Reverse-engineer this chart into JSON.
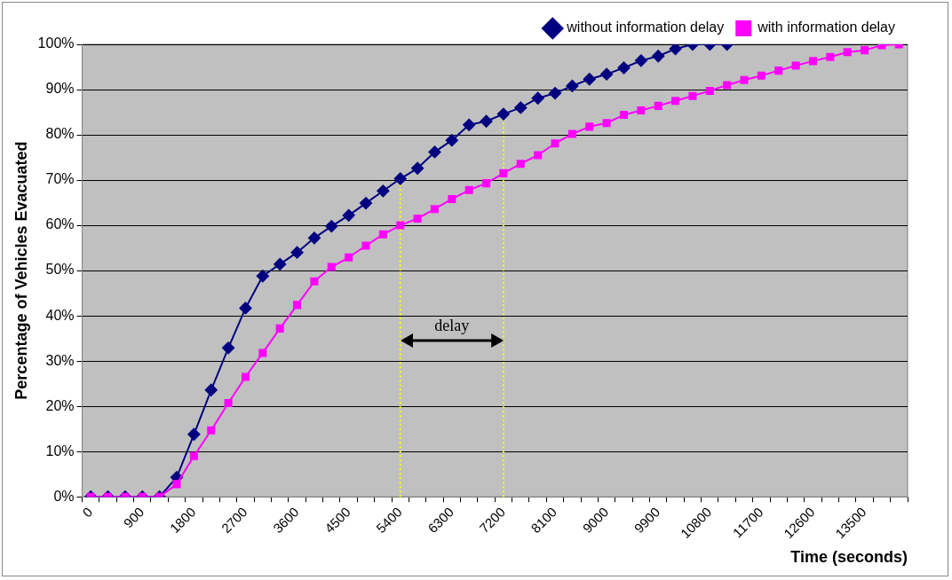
{
  "chart_data": {
    "type": "line",
    "xlabel": "Time (seconds)",
    "ylabel": "Percentage of Vehicles Evacuated",
    "categories": [
      "0",
      null,
      null,
      "900",
      null,
      null,
      "1800",
      null,
      null,
      "2700",
      null,
      null,
      "3600",
      null,
      null,
      "4500",
      null,
      null,
      "5400",
      null,
      null,
      "6300",
      null,
      null,
      "7200",
      null,
      null,
      "8100",
      null,
      null,
      "9000",
      null,
      null,
      "9900",
      null,
      null,
      "10800",
      null,
      null,
      "11700",
      null,
      null,
      "12600",
      null,
      null,
      "13500",
      null,
      null
    ],
    "series": [
      {
        "name": "without information delay",
        "color": "#000080",
        "marker": "diamond",
        "values": [
          0,
          0,
          0,
          0,
          0,
          4.3,
          13.8,
          23.6,
          32.9,
          41.7,
          48.8,
          51.4,
          54.0,
          57.2,
          59.8,
          62.2,
          64.9,
          67.6,
          70.3,
          72.6,
          76.2,
          78.8,
          82.2,
          83.0,
          84.6,
          86.0,
          88.1,
          89.2,
          90.8,
          92.3,
          93.4,
          94.8,
          96.4,
          97.4,
          99.0,
          100,
          100,
          100,
          null,
          null,
          null,
          null,
          null,
          null,
          null,
          null,
          null,
          null
        ]
      },
      {
        "name": "with information delay",
        "color": "#ff00ff",
        "marker": "square",
        "values": [
          0,
          0,
          0,
          0,
          0,
          2.8,
          9.0,
          14.7,
          20.7,
          26.5,
          31.8,
          37.2,
          42.4,
          47.6,
          50.8,
          52.9,
          55.5,
          58.0,
          60.0,
          61.5,
          63.6,
          65.8,
          67.8,
          69.3,
          71.5,
          73.6,
          75.5,
          78.1,
          80.2,
          81.8,
          82.6,
          84.4,
          85.4,
          86.4,
          87.5,
          88.6,
          89.7,
          91.0,
          92.1,
          93.1,
          94.2,
          95.3,
          96.3,
          97.2,
          98.3,
          98.7,
          99.8,
          100
        ]
      }
    ],
    "ylim": [
      0,
      100
    ],
    "yticks": [
      {
        "value": 0,
        "label": "0%"
      },
      {
        "value": 10,
        "label": "10%"
      },
      {
        "value": 20,
        "label": "20%"
      },
      {
        "value": 30,
        "label": "30%"
      },
      {
        "value": 40,
        "label": "40%"
      },
      {
        "value": 50,
        "label": "50%"
      },
      {
        "value": 60,
        "label": "60%"
      },
      {
        "value": 70,
        "label": "70%"
      },
      {
        "value": 80,
        "label": "80%"
      },
      {
        "value": 90,
        "label": "90%"
      },
      {
        "value": 100,
        "label": "100%"
      }
    ],
    "ref_lines": [
      {
        "axis": "x",
        "value": "5400",
        "color": "#ffff00",
        "line_style": "dotted"
      },
      {
        "axis": "x",
        "value": "7200",
        "color": "#ffff00",
        "line_style": "dotted"
      }
    ],
    "annotations": [
      "delay"
    ],
    "grid": "y",
    "legend": "top right",
    "line_style": "solid"
  }
}
